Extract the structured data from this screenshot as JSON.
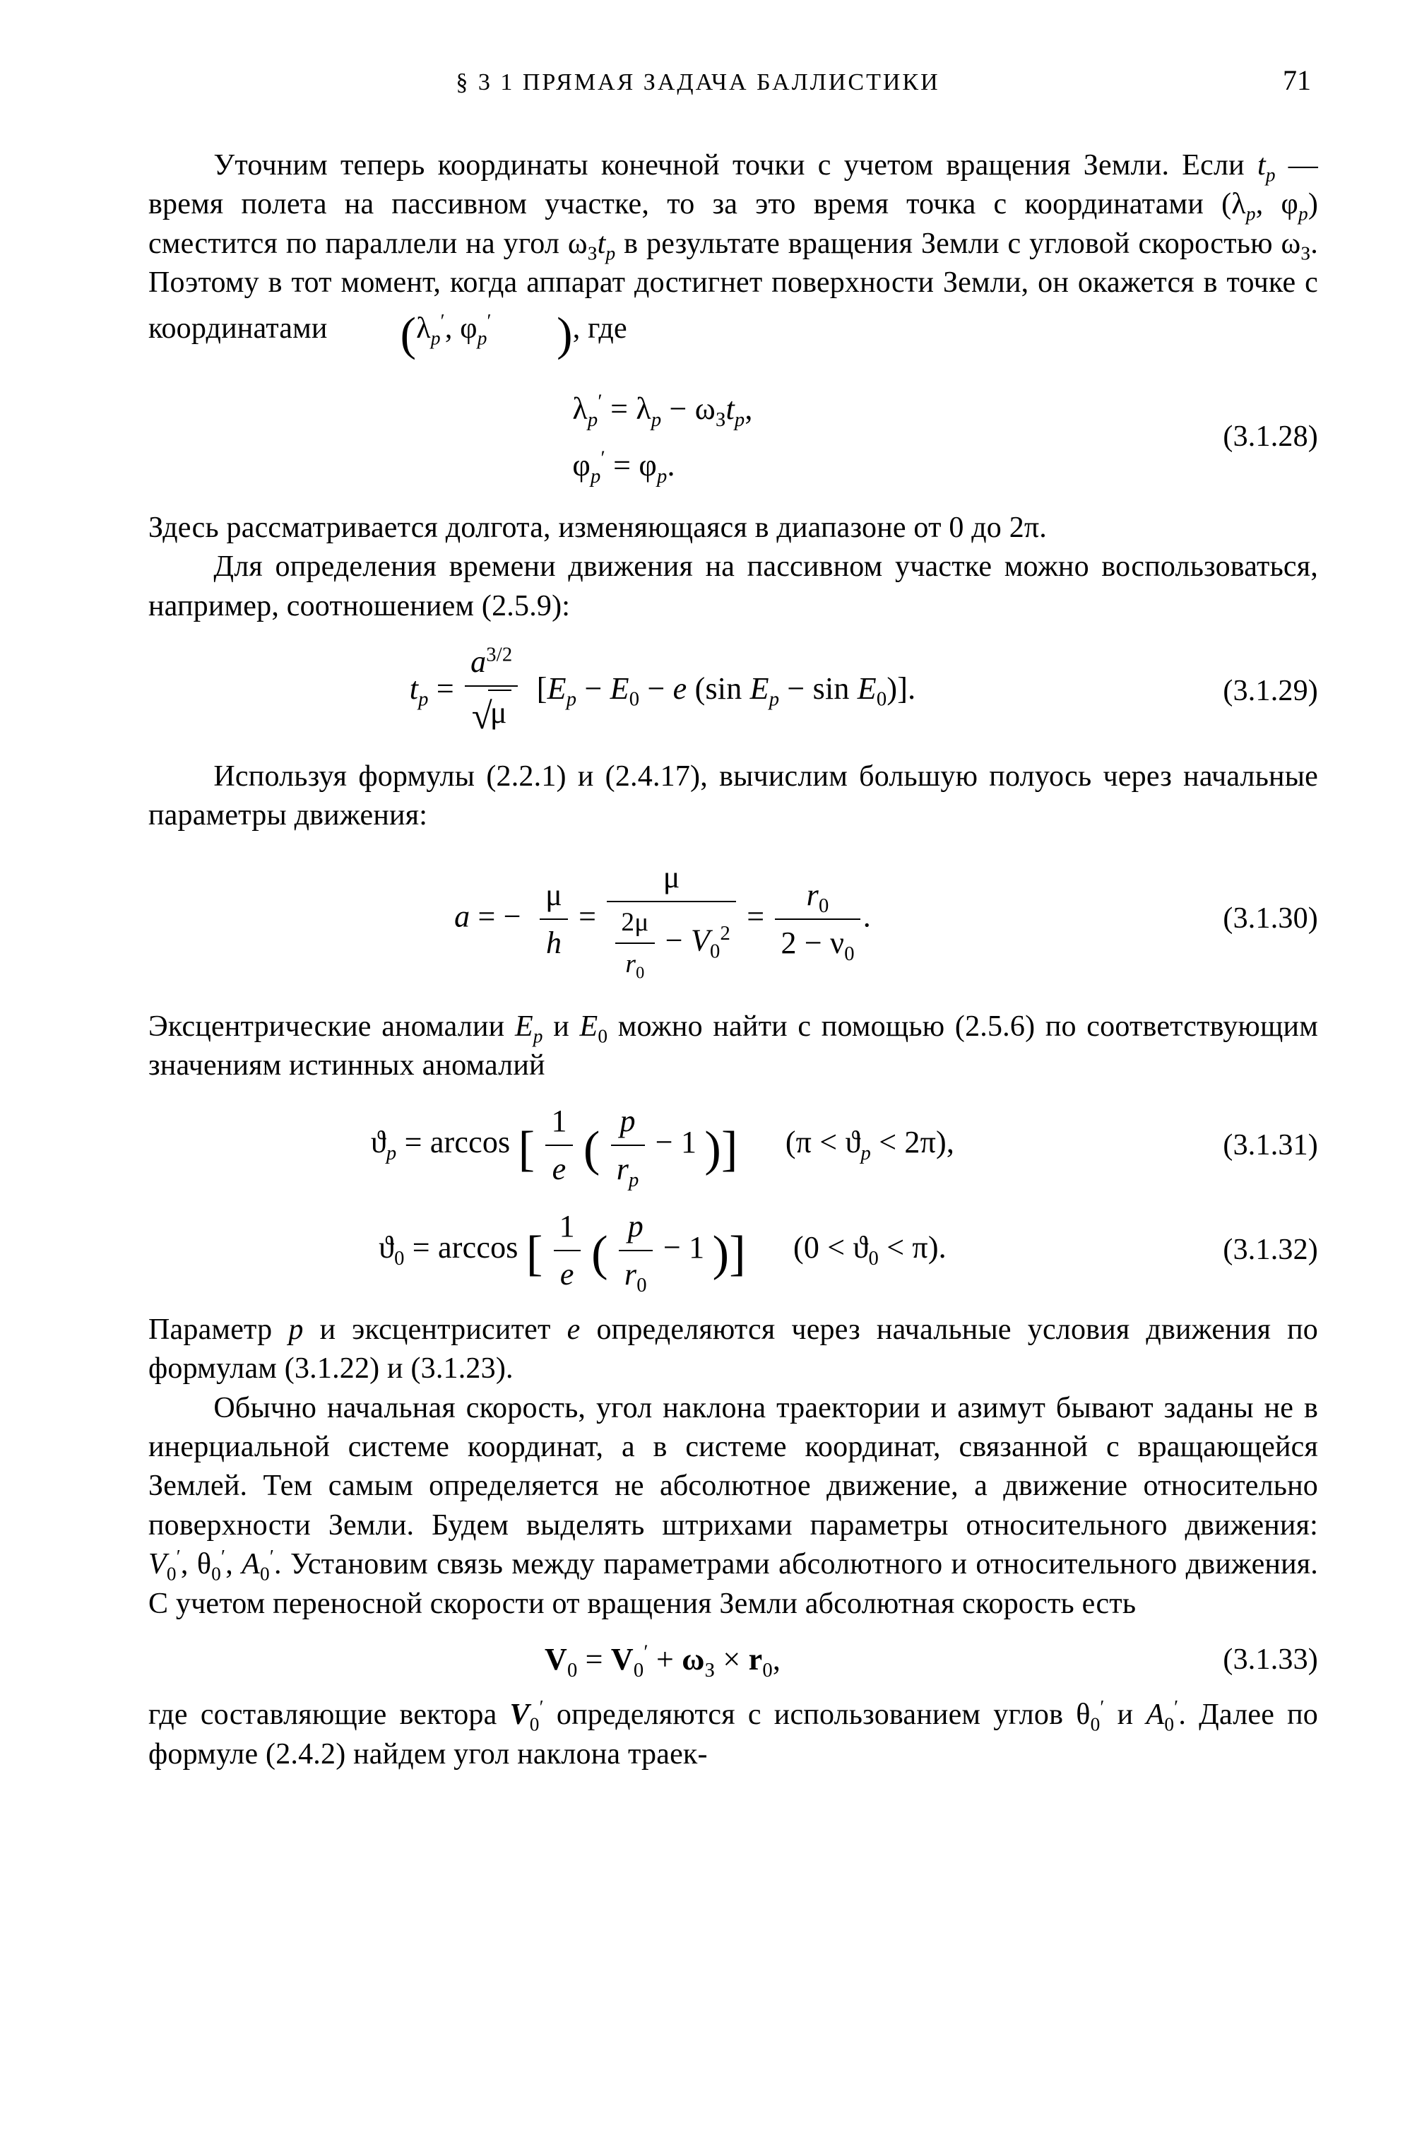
{
  "header": {
    "section": "§ 3 1 ПРЯМАЯ ЗАДАЧА БАЛЛИСТИКИ",
    "page": "71"
  },
  "para": {
    "p1a": "Уточним теперь координаты конечной точки с учетом вращения Земли. Если ",
    "p1b": " — время полета на пассивном участке, то за это время точка с координатами (λ",
    "p1c": ", φ",
    "p1d": ") сместится по параллели на угол ω",
    "p1e": " в результате вращения Земли с угловой скоростью ω",
    "p1f": ". Поэтому в тот момент, когда аппарат достигнет поверхности Земли, он окажется в точке с координатами ",
    "p1g": ", где",
    "p2": "Здесь рассматривается долгота, изменяющаяся в диапазоне от 0 до 2π.",
    "p3": "Для определения времени движения на пассивном участке можно воспользоваться, например, соотношением (2.5.9):",
    "p4": "Используя формулы (2.2.1) и (2.4.17), вычислим большую полуось через начальные параметры движения:",
    "p5a": "Эксцентрические аномалии ",
    "p5b": " и ",
    "p5c": " можно найти с помощью (2.5.6) по соответствующим значениям истинных аномалий",
    "p6a": "Параметр ",
    "p6b": " и эксцентриситет ",
    "p6c": " определяются через начальные условия движения по формулам (3.1.22) и (3.1.23).",
    "p7a": "Обычно начальная скорость, угол наклона траектории и азимут бывают заданы не в инерциальной системе координат, а в системе координат, связанной с вращающейся Землей. Тем самым определяется не абсолютное движение, а движение относительно поверхности Земли. Будем выделять штрихами параметры относительного движения: ",
    "p7b": ". Установим связь между параметрами абсолютного и относительного движения. С учетом переносной скорости от вращения Земли абсолютная скорость есть",
    "p8a": "где составляющие вектора ",
    "p8b": " определяются с использованием углов θ",
    "p8c": " и ",
    "p8d": ". Далее по формуле (2.4.2) найдем угол наклона траек-"
  },
  "eq": {
    "e28num": "(3.1.28)",
    "e29num": "(3.1.29)",
    "e30num": "(3.1.30)",
    "e31num": "(3.1.31)",
    "e32num": "(3.1.32)",
    "e33num": "(3.1.33)",
    "e31_range": "(π < ϑ",
    "e31_range2": " < 2π),",
    "e32_range": "(0 < ϑ",
    "e32_range2": " < π)."
  },
  "sym": {
    "tp": "t",
    "p": "p",
    "zero": "0",
    "three": "3",
    "Z": "З",
    "lambda": "λ",
    "phi": "φ",
    "omega": "ω",
    "mu": "μ",
    "a": "a",
    "h": "h",
    "r": "r",
    "V": "V",
    "vnu": "ν",
    "e": "e",
    "E": "E",
    "theta": "ϑ",
    "arccos": "arccos",
    "sin": "sin",
    "eq": " = ",
    "minus": " − ",
    "plus": " + ",
    "times": " × ",
    "comma": ",",
    "dot": ".",
    "two": "2",
    "one": "1",
    "prime": "′",
    "halfthree": "3/2",
    "Vbold": "V",
    "rbold": "r",
    "A": "A",
    "thetagr": "θ"
  }
}
